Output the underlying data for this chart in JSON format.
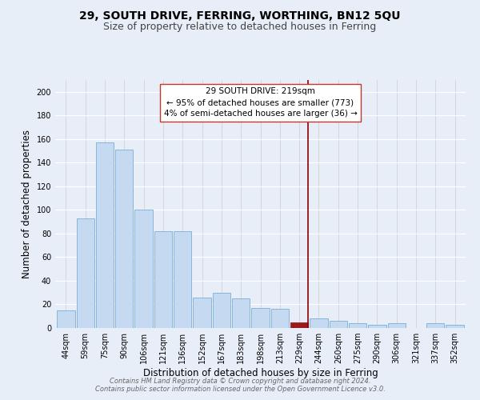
{
  "title": "29, SOUTH DRIVE, FERRING, WORTHING, BN12 5QU",
  "subtitle": "Size of property relative to detached houses in Ferring",
  "xlabel": "Distribution of detached houses by size in Ferring",
  "ylabel": "Number of detached properties",
  "categories": [
    "44sqm",
    "59sqm",
    "75sqm",
    "90sqm",
    "106sqm",
    "121sqm",
    "136sqm",
    "152sqm",
    "167sqm",
    "183sqm",
    "198sqm",
    "213sqm",
    "229sqm",
    "244sqm",
    "260sqm",
    "275sqm",
    "290sqm",
    "306sqm",
    "321sqm",
    "337sqm",
    "352sqm"
  ],
  "values": [
    15,
    93,
    157,
    151,
    100,
    82,
    82,
    26,
    30,
    25,
    17,
    16,
    5,
    8,
    6,
    4,
    3,
    4,
    0,
    4,
    3
  ],
  "bar_color": "#c5d9f0",
  "bar_edge_color": "#7aafd4",
  "highlight_bar_index": 12,
  "highlight_bar_color": "#9b1b1b",
  "highlight_bar_edge_color": "#9b1b1b",
  "vline_color": "#8b0000",
  "ylim": [
    0,
    210
  ],
  "yticks": [
    0,
    20,
    40,
    60,
    80,
    100,
    120,
    140,
    160,
    180,
    200
  ],
  "annotation_title": "29 SOUTH DRIVE: 219sqm",
  "annotation_line1": "← 95% of detached houses are smaller (773)",
  "annotation_line2": "4% of semi-detached houses are larger (36) →",
  "footer_line1": "Contains HM Land Registry data © Crown copyright and database right 2024.",
  "footer_line2": "Contains public sector information licensed under the Open Government Licence v3.0.",
  "fig_facecolor": "#e8eef8",
  "plot_facecolor": "#e8eef8",
  "title_fontsize": 10,
  "subtitle_fontsize": 9,
  "axis_label_fontsize": 8.5,
  "tick_fontsize": 7,
  "annotation_fontsize": 7.5,
  "footer_fontsize": 6
}
